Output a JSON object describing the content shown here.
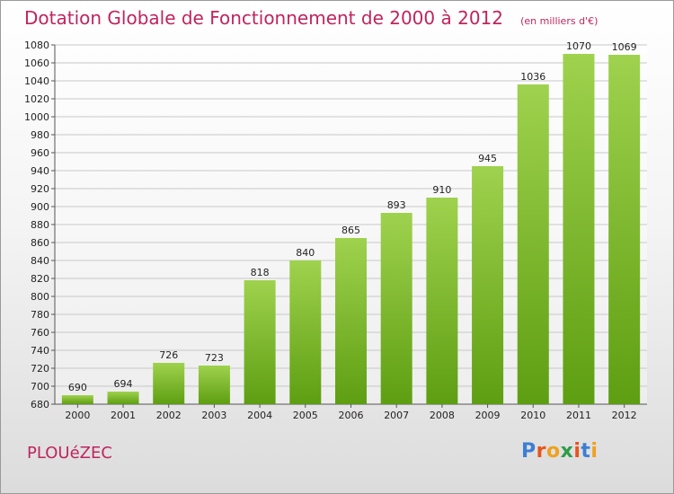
{
  "header": {
    "title": "Dotation Globale de Fonctionnement de 2000 à 2012",
    "unit": "(en milliers d'€)"
  },
  "footer": {
    "commune": "PLOUéZEC",
    "logo": "Proxiti",
    "logo_colors": [
      "#3b7fd4",
      "#e8541d",
      "#f0a020",
      "#2e9c4a",
      "#e8541d",
      "#3b7fd4",
      "#f0a020"
    ]
  },
  "colors": {
    "bar_light": "#9fd24e",
    "bar_dark": "#5e9e12",
    "accent": "#c0245e"
  },
  "chart_data": {
    "type": "bar",
    "categories": [
      "2000",
      "2001",
      "2002",
      "2003",
      "2004",
      "2005",
      "2006",
      "2007",
      "2008",
      "2009",
      "2010",
      "2011",
      "2012"
    ],
    "values": [
      690,
      694,
      726,
      723,
      818,
      840,
      865,
      893,
      910,
      945,
      1036,
      1070,
      1069
    ],
    "ylim": [
      680,
      1080
    ],
    "yticks": [
      680,
      700,
      720,
      740,
      760,
      780,
      800,
      820,
      840,
      860,
      880,
      900,
      920,
      940,
      960,
      980,
      1000,
      1020,
      1040,
      1060,
      1080
    ],
    "grid": true,
    "xlabel": "",
    "ylabel": ""
  }
}
